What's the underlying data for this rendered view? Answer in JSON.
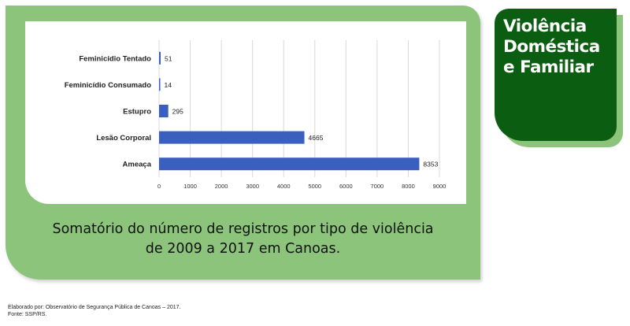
{
  "badge": {
    "title_lines": [
      "Violência",
      "Doméstica",
      "e Familiar"
    ]
  },
  "caption": {
    "line1": "Somatório do número de registros por tipo de violência",
    "line2": "de 2009 a 2017 em Canoas."
  },
  "footer": {
    "credit": "Elaborado por: Observatório de Segurança Pública de Canoas – 2017.",
    "source": "Fonte: SSP/RS."
  },
  "colors": {
    "panel": "#8dc47c",
    "badge": "#0b5e11",
    "bar": "#3a5fbf"
  },
  "chart_data": {
    "type": "bar",
    "orientation": "horizontal",
    "categories": [
      "Feminicídio Tentado",
      "Feminicídio Consumado",
      "Estupro",
      "Lesão Corporal",
      "Ameaça"
    ],
    "values": [
      51,
      14,
      295,
      4665,
      8353
    ],
    "xticks": [
      0,
      1000,
      2000,
      3000,
      4000,
      5000,
      6000,
      7000,
      8000,
      9000
    ],
    "xlim": [
      0,
      9000
    ],
    "grid": true,
    "data_labels": true
  }
}
